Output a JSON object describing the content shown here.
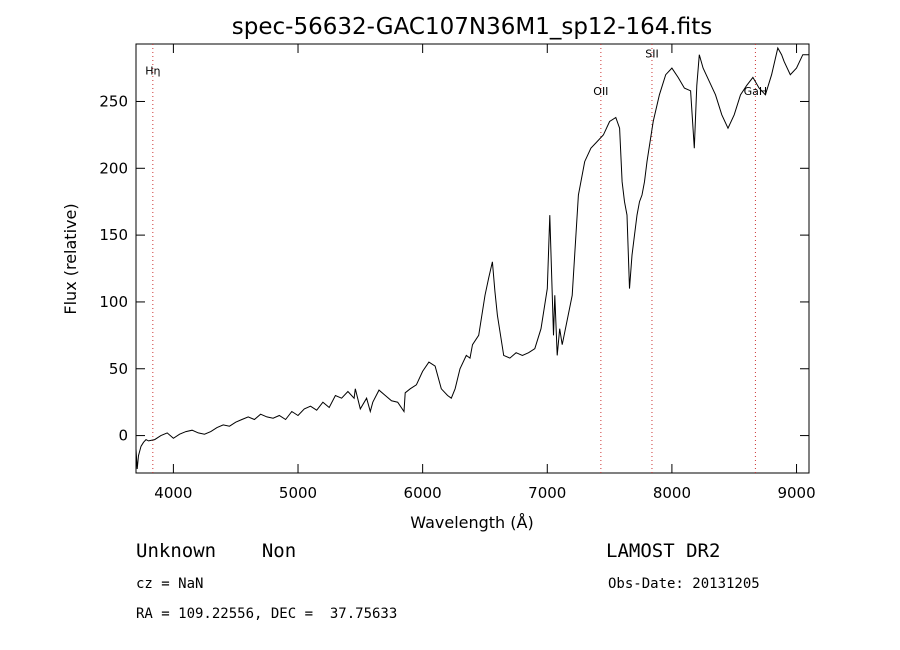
{
  "chart_data": {
    "type": "line",
    "title": "spec-56632-GAC107N36M1_sp12-164.fits",
    "xlabel": "Wavelength (Å)",
    "ylabel": "Flux (relative)",
    "xlim": [
      3700,
      9100
    ],
    "ylim": [
      -28,
      293
    ],
    "xticks": [
      4000,
      5000,
      6000,
      7000,
      8000,
      9000
    ],
    "yticks": [
      0,
      50,
      100,
      150,
      200,
      250
    ],
    "grid": false,
    "series": [
      {
        "x": [
          3700,
          3710,
          3720,
          3740,
          3760,
          3780,
          3800,
          3850,
          3900,
          3950,
          4000,
          4050,
          4100,
          4150,
          4200,
          4250,
          4300,
          4350,
          4400,
          4450,
          4500,
          4550,
          4600,
          4650,
          4700,
          4750,
          4800,
          4850,
          4900,
          4950,
          5000,
          5050,
          5100,
          5150,
          5200,
          5250,
          5300,
          5350,
          5400,
          5450,
          5460,
          5500,
          5550,
          5580,
          5600,
          5650,
          5700,
          5750,
          5800,
          5850,
          5860,
          5900,
          5950,
          6000,
          6050,
          6100,
          6150,
          6200,
          6230,
          6260,
          6300,
          6350,
          6380,
          6400,
          6450,
          6500,
          6530,
          6560,
          6580,
          6600,
          6650,
          6700,
          6750,
          6800,
          6850,
          6900,
          6950,
          7000,
          7020,
          7050,
          7060,
          7080,
          7100,
          7120,
          7150,
          7200,
          7250,
          7300,
          7350,
          7400,
          7450,
          7500,
          7550,
          7580,
          7600,
          7620,
          7640,
          7660,
          7680,
          7700,
          7720,
          7740,
          7760,
          7780,
          7800,
          7850,
          7900,
          7950,
          8000,
          8050,
          8100,
          8150,
          8180,
          8200,
          8220,
          8250,
          8300,
          8350,
          8400,
          8450,
          8500,
          8550,
          8600,
          8650,
          8700,
          8750,
          8800,
          8850,
          8880,
          8900,
          8950,
          9000,
          9050,
          9100
        ],
        "y": [
          -10,
          -25,
          -15,
          -8,
          -5,
          -3,
          -4,
          -3,
          0,
          2,
          -2,
          1,
          3,
          4,
          2,
          1,
          3,
          6,
          8,
          7,
          10,
          12,
          14,
          12,
          16,
          14,
          13,
          15,
          12,
          18,
          15,
          20,
          22,
          19,
          25,
          21,
          30,
          28,
          33,
          28,
          35,
          20,
          28,
          18,
          25,
          34,
          30,
          26,
          25,
          18,
          32,
          35,
          38,
          48,
          55,
          52,
          35,
          30,
          28,
          35,
          50,
          60,
          58,
          68,
          75,
          105,
          118,
          130,
          108,
          90,
          60,
          58,
          62,
          60,
          62,
          65,
          80,
          110,
          165,
          75,
          105,
          60,
          80,
          68,
          82,
          105,
          180,
          205,
          215,
          220,
          225,
          235,
          238,
          230,
          190,
          175,
          165,
          110,
          135,
          150,
          165,
          175,
          180,
          190,
          205,
          235,
          255,
          270,
          275,
          268,
          260,
          258,
          215,
          262,
          285,
          275,
          265,
          255,
          240,
          230,
          240,
          255,
          262,
          268,
          260,
          255,
          270,
          290,
          285,
          280,
          270,
          275,
          285,
          285
        ]
      }
    ],
    "annotations": [
      {
        "label": "Hη",
        "x": 3835,
        "y": 270
      },
      {
        "label": "OII",
        "x": 7430,
        "y": 255
      },
      {
        "label": "SII",
        "x": 7840,
        "y": 283
      },
      {
        "label": "GaH",
        "x": 8670,
        "y": 255
      }
    ],
    "line_color": "#000000",
    "marker_color": "#cc3333"
  },
  "info": {
    "class_text": "Unknown    Non",
    "survey": "LAMOST DR2",
    "cz": "cz = NaN",
    "obs_date": "Obs-Date: 20131205",
    "radec": "RA = 109.22556, DEC =  37.75633"
  }
}
